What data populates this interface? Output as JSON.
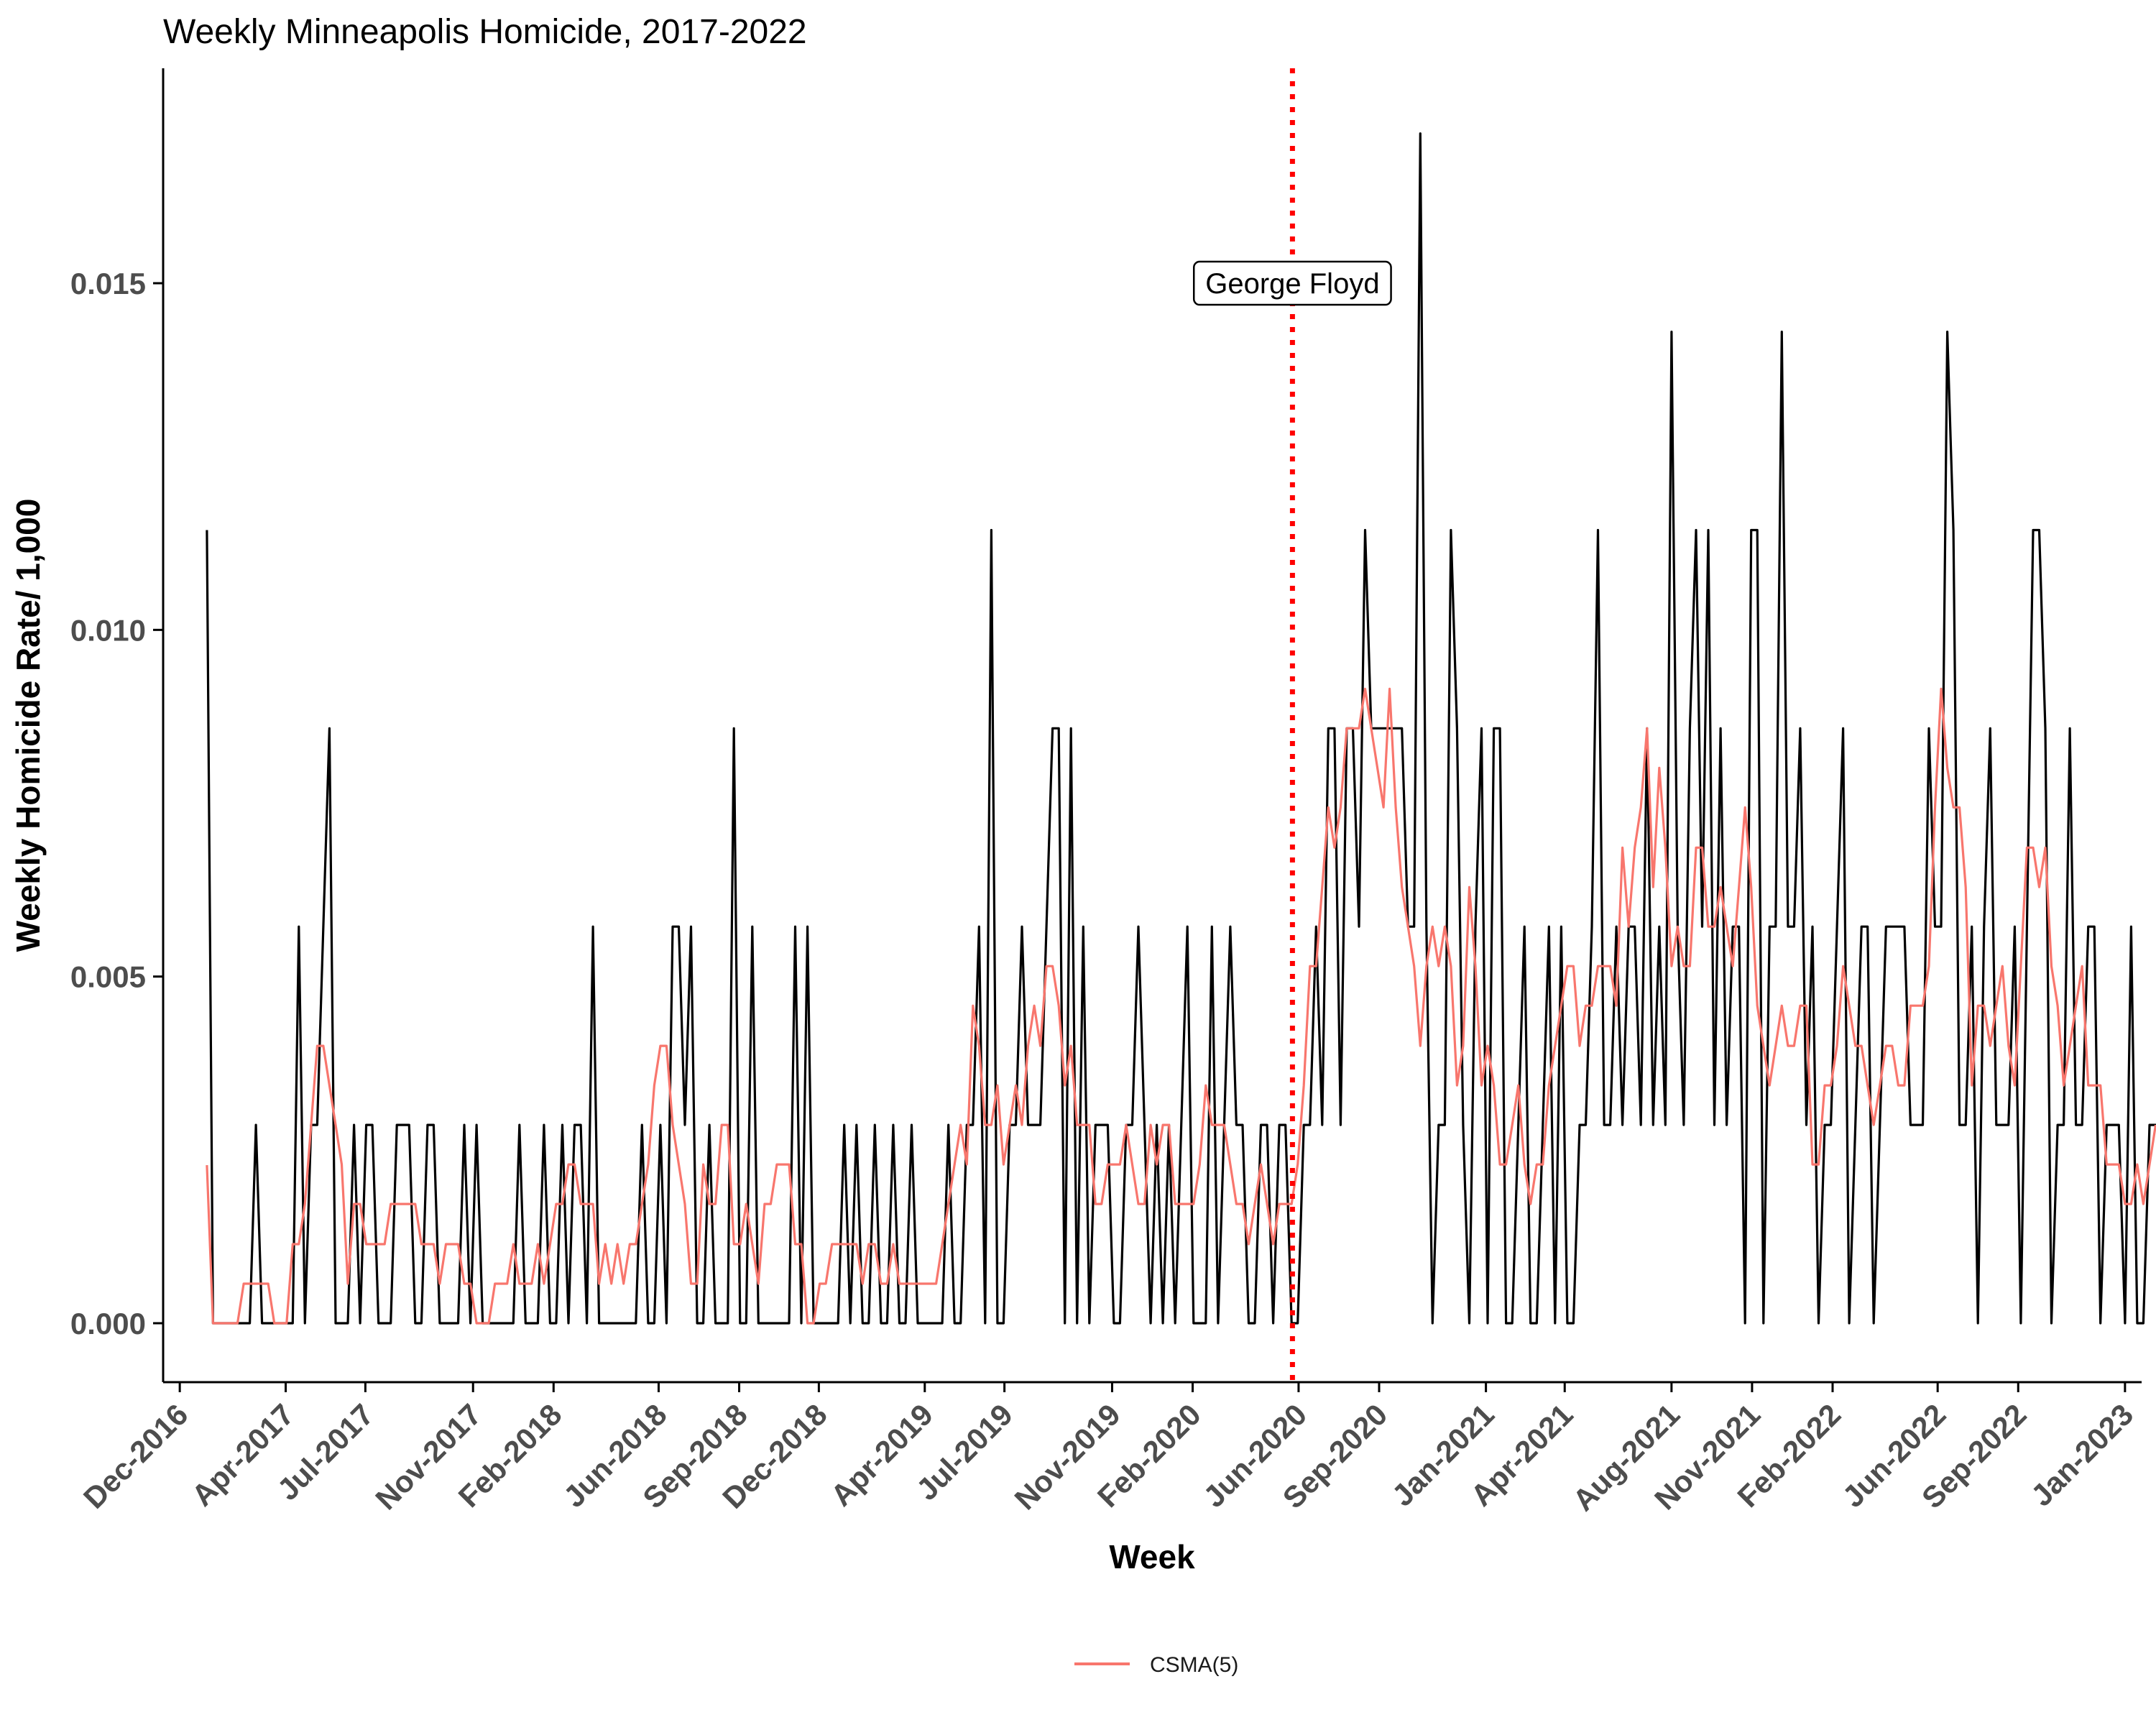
{
  "chart_data": {
    "type": "line",
    "title": "Weekly Minneapolis Homicide, 2017-2022",
    "xlabel": "Week",
    "ylabel": "Weekly Homicide Rate/ 1,000",
    "x_start": "2017-01-01",
    "x_range": [
      "2016-11-12",
      "2023-01-20"
    ],
    "ylim": [
      -0.00085,
      0.0181
    ],
    "y_ticks": [
      0.0,
      0.005,
      0.01,
      0.015
    ],
    "y_tick_labels": [
      "0.000",
      "0.005",
      "0.010",
      "0.015"
    ],
    "x_ticks": [
      "2016-12-01",
      "2017-04-01",
      "2017-07-01",
      "2017-11-01",
      "2018-02-01",
      "2018-06-01",
      "2018-09-01",
      "2018-12-01",
      "2019-04-01",
      "2019-07-01",
      "2019-11-01",
      "2020-02-01",
      "2020-06-01",
      "2020-09-01",
      "2021-01-01",
      "2021-04-01",
      "2021-08-01",
      "2021-11-01",
      "2022-02-01",
      "2022-06-01",
      "2022-09-01",
      "2023-01-01"
    ],
    "x_tick_labels": [
      "Dec-2016",
      "Apr-2017",
      "Jul-2017",
      "Nov-2017",
      "Feb-2018",
      "Jun-2018",
      "Sep-2018",
      "Dec-2018",
      "Apr-2019",
      "Jul-2019",
      "Nov-2019",
      "Feb-2020",
      "Jun-2020",
      "Sep-2020",
      "Jan-2021",
      "Apr-2021",
      "Aug-2021",
      "Nov-2021",
      "Feb-2022",
      "Jun-2022",
      "Sep-2022",
      "Jan-2023"
    ],
    "grid": false,
    "legend_position": "bottom",
    "series": [
      {
        "name": "",
        "color": "#000000",
        "values": [
          0.01144,
          0,
          0,
          0,
          0,
          0,
          0,
          0,
          0.00286,
          0,
          0,
          0,
          0,
          0,
          0,
          0.00572,
          0,
          0.00286,
          0.00286,
          0.00572,
          0.00858,
          0,
          0,
          0,
          0.00286,
          0,
          0.00286,
          0.00286,
          0,
          0,
          0,
          0.00286,
          0.00286,
          0.00286,
          0,
          0,
          0.00286,
          0.00286,
          0,
          0,
          0,
          0,
          0.00286,
          0,
          0.00286,
          0,
          0,
          0,
          0,
          0,
          0,
          0.00286,
          0,
          0,
          0,
          0.00286,
          0,
          0,
          0.00286,
          0,
          0.00286,
          0.00286,
          0,
          0.00572,
          0,
          0,
          0,
          0,
          0,
          0,
          0,
          0.00286,
          0,
          0,
          0.00286,
          0,
          0.00572,
          0.00572,
          0.00286,
          0.00572,
          0,
          0,
          0.00286,
          0,
          0,
          0,
          0.00858,
          0,
          0,
          0.00572,
          0,
          0,
          0,
          0,
          0,
          0,
          0.00572,
          0,
          0.00572,
          0,
          0,
          0,
          0,
          0,
          0.00286,
          0,
          0.00286,
          0,
          0,
          0.00286,
          0,
          0,
          0.00286,
          0,
          0,
          0.00286,
          0,
          0,
          0,
          0,
          0,
          0.00286,
          0,
          0,
          0.00286,
          0.00286,
          0.00572,
          0,
          0.01144,
          0,
          0,
          0.00286,
          0.00286,
          0.00572,
          0.00286,
          0.00286,
          0.00286,
          0.00572,
          0.00858,
          0.00858,
          0,
          0.00858,
          0,
          0.00572,
          0,
          0.00286,
          0.00286,
          0.00286,
          0,
          0,
          0.00286,
          0.00286,
          0.00572,
          0.00286,
          0,
          0.00286,
          0,
          0.00286,
          0,
          0.00286,
          0.00572,
          0,
          0,
          0,
          0.00572,
          0,
          0.00286,
          0.00572,
          0.00286,
          0.00286,
          0,
          0,
          0.00286,
          0.00286,
          0,
          0.00286,
          0.00286,
          0,
          0,
          0.00286,
          0.00286,
          0.00572,
          0.00286,
          0.00858,
          0.00858,
          0.00286,
          0.00858,
          0.00858,
          0.00572,
          0.01144,
          0.00858,
          0.00858,
          0.00858,
          0.00858,
          0.00858,
          0.00858,
          0.00572,
          0.00572,
          0.01716,
          0.00572,
          0,
          0.00286,
          0.00286,
          0.01144,
          0.00858,
          0.00286,
          0,
          0.00572,
          0.00858,
          0,
          0.00858,
          0.00858,
          0,
          0,
          0.00286,
          0.00572,
          0,
          0,
          0.00286,
          0.00572,
          0,
          0.00572,
          0,
          0,
          0.00286,
          0.00286,
          0.00572,
          0.01144,
          0.00286,
          0.00286,
          0.00572,
          0.00286,
          0.00572,
          0.00572,
          0.00286,
          0.00858,
          0.00286,
          0.00572,
          0.00286,
          0.0143,
          0.00572,
          0.00286,
          0.00858,
          0.01144,
          0.00572,
          0.01144,
          0.00286,
          0.00858,
          0.00286,
          0.00572,
          0.00572,
          0,
          0.01144,
          0.01144,
          0,
          0.00572,
          0.00572,
          0.0143,
          0.00572,
          0.00572,
          0.00858,
          0.00286,
          0.00572,
          0,
          0.00286,
          0.00286,
          0.00572,
          0.00858,
          0,
          0.00286,
          0.00572,
          0.00572,
          0,
          0.00286,
          0.00572,
          0.00572,
          0.00572,
          0.00572,
          0.00286,
          0.00286,
          0.00286,
          0.00858,
          0.00572,
          0.00572,
          0.0143,
          0.01144,
          0.00286,
          0.00286,
          0.00572,
          0,
          0.00572,
          0.00858,
          0.00286,
          0.00286,
          0.00286,
          0.00572,
          0,
          0.00572,
          0.01144,
          0.01144,
          0.00858,
          0,
          0.00286,
          0.00286,
          0.00858,
          0.00286,
          0.00286,
          0.00572,
          0.00572,
          0,
          0.00286,
          0.00286,
          0.00286,
          0,
          0.00572,
          0,
          0,
          0.00286,
          0.00286,
          0.00286,
          0.00572
        ]
      },
      {
        "name": "CSMA(5)",
        "color": "#f8766d",
        "values": [
          0.00228,
          0,
          0,
          0,
          0,
          0,
          0.00057,
          0.00057,
          0.00057,
          0.00057,
          0.00057,
          0,
          0,
          0,
          0.00114,
          0.00114,
          0.00172,
          0.00286,
          0.004,
          0.004,
          0.00343,
          0.00286,
          0.00229,
          0.00057,
          0.00172,
          0.00172,
          0.00114,
          0.00114,
          0.00114,
          0.00114,
          0.00172,
          0.00172,
          0.00172,
          0.00172,
          0.00172,
          0.00114,
          0.00114,
          0.00114,
          0.00057,
          0.00114,
          0.00114,
          0.00114,
          0.00057,
          0.00057,
          0,
          0,
          0,
          0.00057,
          0.00057,
          0.00057,
          0.00114,
          0.00057,
          0.00057,
          0.00057,
          0.00114,
          0.00057,
          0.00114,
          0.00172,
          0.00172,
          0.00229,
          0.00229,
          0.00172,
          0.00172,
          0.00172,
          0.00057,
          0.00114,
          0.00057,
          0.00114,
          0.00057,
          0.00114,
          0.00114,
          0.00172,
          0.00229,
          0.00343,
          0.004,
          0.004,
          0.00286,
          0.00229,
          0.00172,
          0.00057,
          0.00057,
          0.00229,
          0.00172,
          0.00172,
          0.00286,
          0.00286,
          0.00114,
          0.00114,
          0.00172,
          0.00114,
          0.00057,
          0.00172,
          0.00172,
          0.00229,
          0.00229,
          0.00229,
          0.00114,
          0.00114,
          0,
          0,
          0.00057,
          0.00057,
          0.00114,
          0.00114,
          0.00114,
          0.00114,
          0.00114,
          0.00057,
          0.00114,
          0.00114,
          0.00057,
          0.00057,
          0.00114,
          0.00057,
          0.00057,
          0.00057,
          0.00057,
          0.00057,
          0.00057,
          0.00057,
          0.00114,
          0.00172,
          0.00229,
          0.00286,
          0.00229,
          0.00458,
          0.004,
          0.00286,
          0.00286,
          0.00343,
          0.00229,
          0.00286,
          0.00343,
          0.00286,
          0.004,
          0.00458,
          0.004,
          0.00515,
          0.00515,
          0.00458,
          0.00343,
          0.004,
          0.00286,
          0.00286,
          0.00286,
          0.00172,
          0.00172,
          0.00229,
          0.00229,
          0.00229,
          0.00286,
          0.00229,
          0.00172,
          0.00172,
          0.00286,
          0.00229,
          0.00286,
          0.00286,
          0.00172,
          0.00172,
          0.00172,
          0.00172,
          0.00229,
          0.00343,
          0.00286,
          0.00286,
          0.00286,
          0.00229,
          0.00172,
          0.00172,
          0.00114,
          0.00172,
          0.00229,
          0.00172,
          0.00114,
          0.00172,
          0.00172,
          0.00172,
          0.00229,
          0.00343,
          0.00515,
          0.00515,
          0.00629,
          0.00744,
          0.00686,
          0.00744,
          0.00858,
          0.00858,
          0.00858,
          0.00915,
          0.00858,
          0.00801,
          0.00744,
          0.00915,
          0.00744,
          0.00629,
          0.00572,
          0.00515,
          0.004,
          0.00515,
          0.00572,
          0.00515,
          0.00572,
          0.00515,
          0.00343,
          0.004,
          0.00629,
          0.00515,
          0.00343,
          0.004,
          0.00343,
          0.00229,
          0.00229,
          0.00286,
          0.00343,
          0.00229,
          0.00172,
          0.00229,
          0.00229,
          0.00343,
          0.004,
          0.00458,
          0.00515,
          0.00515,
          0.004,
          0.00458,
          0.00458,
          0.00515,
          0.00515,
          0.00515,
          0.00458,
          0.00686,
          0.00572,
          0.00686,
          0.00744,
          0.00858,
          0.00629,
          0.00801,
          0.00686,
          0.00515,
          0.00572,
          0.00515,
          0.00515,
          0.00686,
          0.00686,
          0.00572,
          0.00572,
          0.00629,
          0.00572,
          0.00515,
          0.00629,
          0.00744,
          0.00629,
          0.00458,
          0.004,
          0.00343,
          0.004,
          0.00458,
          0.004,
          0.004,
          0.00458,
          0.00458,
          0.00229,
          0.00229,
          0.00343,
          0.00343,
          0.004,
          0.00515,
          0.00458,
          0.004,
          0.004,
          0.00343,
          0.00286,
          0.00343,
          0.004,
          0.004,
          0.00343,
          0.00343,
          0.00458,
          0.00458,
          0.00458,
          0.00515,
          0.00744,
          0.00915,
          0.00801,
          0.00744,
          0.00744,
          0.00629,
          0.00343,
          0.00458,
          0.00458,
          0.004,
          0.00458,
          0.00515,
          0.004,
          0.00343,
          0.00515,
          0.00686,
          0.00686,
          0.00629,
          0.00686,
          0.00515,
          0.00458,
          0.00343,
          0.004,
          0.00458,
          0.00515,
          0.00343,
          0.00343,
          0.00343,
          0.00229,
          0.00229,
          0.00229,
          0.00172,
          0.00172,
          0.00229,
          0.00172,
          0.00229,
          0.00286
        ]
      }
    ],
    "annotations": [
      {
        "type": "vline",
        "x": "2020-05-25",
        "color": "#ff0000",
        "style": "dotted"
      },
      {
        "type": "label",
        "text": "George Floyd",
        "x": "2020-05-25",
        "y": 0.015
      }
    ]
  }
}
